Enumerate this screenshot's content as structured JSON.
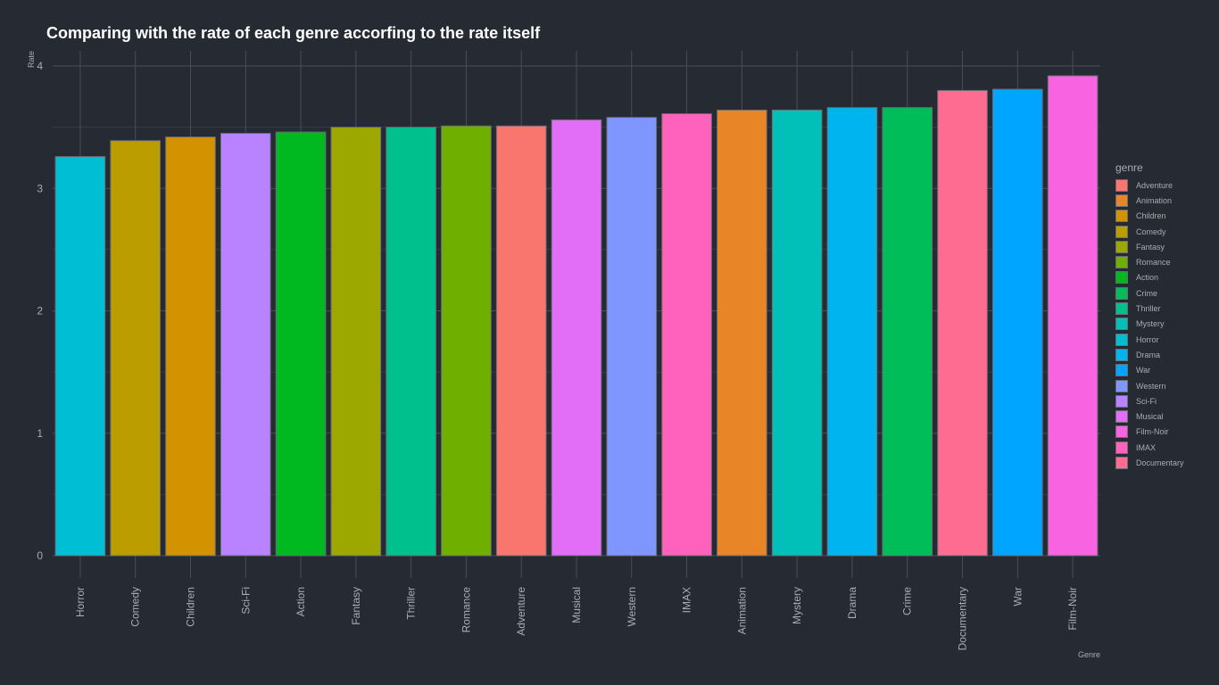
{
  "chart_data": {
    "type": "bar",
    "title": "Comparing with the rate of each genre accorfing to the rate itself",
    "xlabel": "Genre",
    "ylabel": "Rate",
    "ylim": [
      0,
      4
    ],
    "yticks": [
      0,
      1,
      2,
      3,
      4
    ],
    "grid": true,
    "categories": [
      "Horror",
      "Comedy",
      "Children",
      "Sci-Fi",
      "Action",
      "Fantasy",
      "Thriller",
      "Romance",
      "Adventure",
      "Musical",
      "Western",
      "IMAX",
      "Animation",
      "Mystery",
      "Drama",
      "Crime",
      "Documentary",
      "War",
      "Film-Noir"
    ],
    "values": [
      3.26,
      3.39,
      3.42,
      3.45,
      3.46,
      3.5,
      3.5,
      3.51,
      3.51,
      3.56,
      3.58,
      3.61,
      3.64,
      3.64,
      3.66,
      3.66,
      3.8,
      3.81,
      3.92
    ],
    "bar_colors": [
      "#00BFD4",
      "#BB9D00",
      "#D39200",
      "#B983FF",
      "#00B81F",
      "#9CA700",
      "#00C08D",
      "#6FAF00",
      "#F8766D",
      "#E26EF7",
      "#7F96FF",
      "#FF62BC",
      "#E88526",
      "#00C0B8",
      "#00B4EF",
      "#00BC59",
      "#FF6C91",
      "#00A5FF",
      "#F763E0"
    ],
    "legend": {
      "title": "genre",
      "position": "right",
      "entries": [
        {
          "label": "Adventure",
          "color": "#F8766D"
        },
        {
          "label": "Animation",
          "color": "#E88526"
        },
        {
          "label": "Children",
          "color": "#D39200"
        },
        {
          "label": "Comedy",
          "color": "#BB9D00"
        },
        {
          "label": "Fantasy",
          "color": "#9CA700"
        },
        {
          "label": "Romance",
          "color": "#6FAF00"
        },
        {
          "label": "Action",
          "color": "#00B81F"
        },
        {
          "label": "Crime",
          "color": "#00BC59"
        },
        {
          "label": "Thriller",
          "color": "#00C08D"
        },
        {
          "label": "Mystery",
          "color": "#00C0B8"
        },
        {
          "label": "Horror",
          "color": "#00BFD4"
        },
        {
          "label": "Drama",
          "color": "#00B4EF"
        },
        {
          "label": "War",
          "color": "#00A5FF"
        },
        {
          "label": "Western",
          "color": "#7F96FF"
        },
        {
          "label": "Sci-Fi",
          "color": "#B983FF"
        },
        {
          "label": "Musical",
          "color": "#E26EF7"
        },
        {
          "label": "Film-Noir",
          "color": "#F763E0"
        },
        {
          "label": "IMAX",
          "color": "#FF62BC"
        },
        {
          "label": "Documentary",
          "color": "#FF6C91"
        }
      ]
    }
  },
  "theme": {
    "background": "#262a33",
    "grid_color": "#4a4e56",
    "axis_text": "#a9acb2",
    "bar_outline": "#6a6d74"
  }
}
